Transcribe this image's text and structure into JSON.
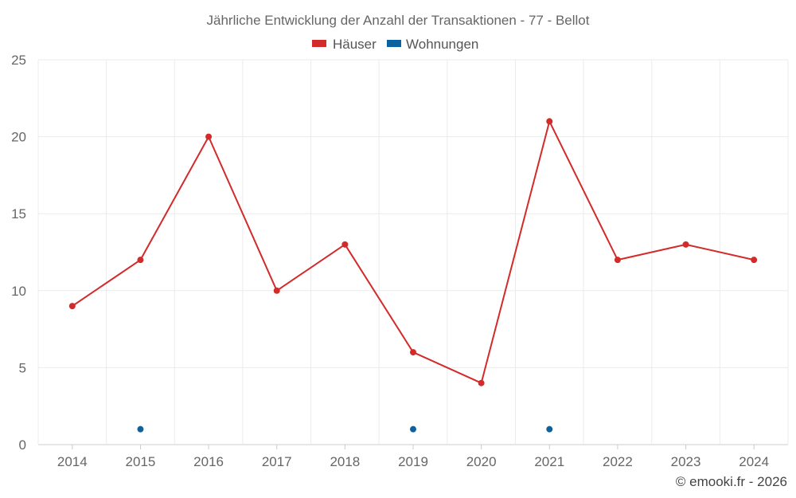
{
  "chart_data": {
    "type": "line",
    "title": "Jährliche Entwicklung der Anzahl der Transaktionen - 77 - Bellot",
    "categories": [
      "2014",
      "2015",
      "2016",
      "2017",
      "2018",
      "2019",
      "2020",
      "2021",
      "2022",
      "2023",
      "2024"
    ],
    "series": [
      {
        "name": "Häuser",
        "color": "#d32a2a",
        "values": [
          9,
          12,
          20,
          10,
          13,
          6,
          4,
          21,
          12,
          13,
          12
        ]
      },
      {
        "name": "Wohnungen",
        "color": "#0a63a0",
        "values": [
          null,
          1,
          null,
          null,
          null,
          1,
          null,
          1,
          null,
          null,
          null
        ]
      }
    ],
    "ylim": [
      0,
      25
    ],
    "yticks": [
      0,
      5,
      10,
      15,
      20,
      25
    ],
    "xlabel": "",
    "ylabel": "",
    "grid": true,
    "legend_position": "top-center"
  },
  "credit": "© emooki.fr - 2026"
}
